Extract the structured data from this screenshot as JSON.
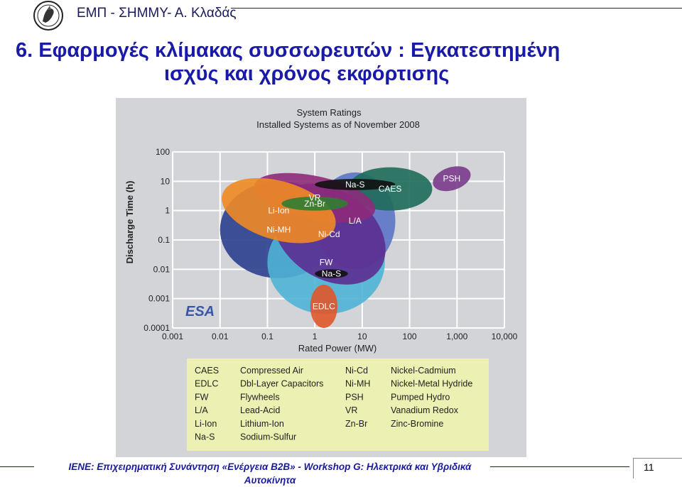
{
  "header": {
    "institution": "ΕΜΠ - ΣΗΜΜΥ- Α. Κλαδάς"
  },
  "slide": {
    "title_line1": "6. Εφαρμογές κλίμακας συσσωρευτών : Εγκατεστημένη",
    "title_line2": "ισχύς και χρόνος εκφόρτισης"
  },
  "chart_data": {
    "type": "scatter",
    "title": "System Ratings",
    "subtitle": "Installed Systems as of November 2008",
    "xlabel": "Rated Power (MW)",
    "ylabel": "Discharge Time (h)",
    "xscale": "log",
    "yscale": "log",
    "xlim": [
      0.001,
      10000
    ],
    "ylim": [
      0.0001,
      100
    ],
    "x_ticks": [
      "0.001",
      "0.01",
      "0.1",
      "1",
      "10",
      "100",
      "1,000",
      "10,000"
    ],
    "y_ticks": [
      "100",
      "10",
      "1",
      "0.1",
      "0.01",
      "0.001",
      "0.0001"
    ],
    "grid": true,
    "logo_text": "ESA",
    "regions": [
      {
        "label": "Ni-MH",
        "power_mw": [
          0.01,
          3
        ],
        "time_h": [
          0.005,
          10
        ],
        "color": "#2b3f8f"
      },
      {
        "label": "FW",
        "power_mw": [
          0.1,
          30
        ],
        "time_h": [
          0.0003,
          1
        ],
        "color": "#4fb3d6"
      },
      {
        "label": "L/A",
        "power_mw": [
          1,
          50
        ],
        "time_h": [
          0.01,
          20
        ],
        "color": "#5b74c8"
      },
      {
        "label": "CAES",
        "power_mw": [
          5,
          300
        ],
        "time_h": [
          1,
          30
        ],
        "color": "#1e6b5a"
      },
      {
        "label": "Ni-Cd",
        "power_mw": [
          0.1,
          40
        ],
        "time_h": [
          0.005,
          5
        ],
        "color": "#5c2d91"
      },
      {
        "label": "VR",
        "power_mw": [
          0.05,
          20
        ],
        "time_h": [
          0.5,
          15
        ],
        "color": "#8e2a7a"
      },
      {
        "label": "Li-Ion",
        "power_mw": [
          0.01,
          3
        ],
        "time_h": [
          0.1,
          10
        ],
        "color": "#f08a24"
      },
      {
        "label": "Zn-Br",
        "power_mw": [
          0.2,
          5
        ],
        "time_h": [
          1,
          3
        ],
        "color": "#2f7d32"
      },
      {
        "label": "Na-S",
        "power_mw": [
          1,
          50
        ],
        "time_h": [
          5,
          12
        ],
        "color": "#111111"
      },
      {
        "label": "Na-S",
        "power_mw": [
          1,
          5
        ],
        "time_h": [
          0.005,
          0.01
        ],
        "color": "#111111"
      },
      {
        "label": "EDLC",
        "power_mw": [
          0.8,
          3
        ],
        "time_h": [
          0.0001,
          0.003
        ],
        "color": "#e0562a"
      },
      {
        "label": "PSH",
        "power_mw": [
          300,
          2000
        ],
        "time_h": [
          5,
          30
        ],
        "color": "#7a3a8c"
      }
    ],
    "legend": [
      {
        "abbr": "CAES",
        "name": "Compressed Air"
      },
      {
        "abbr": "EDLC",
        "name": "Dbl-Layer Capacitors"
      },
      {
        "abbr": "FW",
        "name": "Flywheels"
      },
      {
        "abbr": "L/A",
        "name": "Lead-Acid"
      },
      {
        "abbr": "Li-Ion",
        "name": "Lithium-Ion"
      },
      {
        "abbr": "Na-S",
        "name": "Sodium-Sulfur"
      },
      {
        "abbr": "Ni-Cd",
        "name": "Nickel-Cadmium"
      },
      {
        "abbr": "Ni-MH",
        "name": "Nickel-Metal Hydride"
      },
      {
        "abbr": "PSH",
        "name": "Pumped Hydro"
      },
      {
        "abbr": "VR",
        "name": "Vanadium Redox"
      },
      {
        "abbr": "Zn-Br",
        "name": "Zinc-Bromine"
      }
    ]
  },
  "footer": {
    "text": "IENE: Επιχειρηματική Συνάντηση «Ενέργεια Β2Β» - Workshop G: Ηλεκτρικά και Υβριδικά Αυτοκίνητα",
    "page_number": "11"
  }
}
